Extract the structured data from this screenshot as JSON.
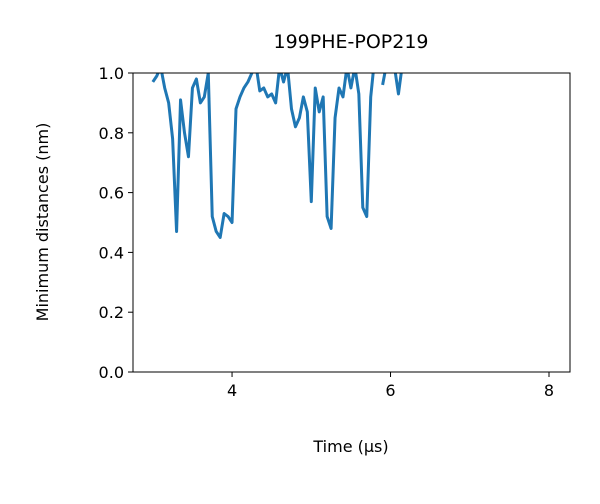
{
  "chart_data": {
    "type": "line",
    "title": "199PHE-POP219",
    "x_label": "Time (μs)",
    "y_label": "Minimum distances (nm)",
    "color": "#1f77b4",
    "x": [
      3.0,
      3.05,
      3.1,
      3.15,
      3.2,
      3.25,
      3.3,
      3.35,
      3.4,
      3.45,
      3.5,
      3.55,
      3.6,
      3.65,
      3.7,
      3.75,
      3.8,
      3.85,
      3.9,
      3.95,
      4.0,
      4.05,
      4.1,
      4.15,
      4.2,
      4.25,
      4.3,
      4.35,
      4.4,
      4.45,
      4.5,
      4.55,
      4.6,
      4.65,
      4.7,
      4.75,
      4.8,
      4.85,
      4.9,
      4.95,
      5.0,
      5.05,
      5.1,
      5.15,
      5.2,
      5.25,
      5.3,
      5.35,
      5.4,
      5.45,
      5.5,
      5.55,
      5.6,
      5.65,
      5.7,
      5.75,
      5.8,
      5.85,
      5.9,
      5.95,
      6.0,
      6.05,
      6.1,
      6.15,
      6.2,
      6.22,
      6.25
    ],
    "values": [
      0.97,
      0.99,
      1.02,
      0.95,
      0.9,
      0.78,
      0.47,
      0.91,
      0.8,
      0.72,
      0.95,
      0.98,
      0.9,
      0.92,
      1.0,
      0.52,
      0.47,
      0.45,
      0.53,
      0.52,
      0.5,
      0.88,
      0.92,
      0.95,
      0.97,
      1.0,
      1.03,
      0.94,
      0.95,
      0.92,
      0.93,
      0.9,
      1.02,
      0.97,
      1.02,
      0.88,
      0.82,
      0.85,
      0.92,
      0.87,
      0.57,
      0.95,
      0.87,
      0.92,
      0.52,
      0.48,
      0.85,
      0.95,
      0.92,
      1.02,
      0.95,
      1.02,
      0.93,
      0.55,
      0.52,
      0.92,
      1.05,
      null,
      0.96,
      1.03,
      null,
      1.02,
      0.93,
      1.03,
      null,
      1.0,
      1.02
    ],
    "xlim": [
      2.75,
      8.265
    ],
    "xticks": [
      4,
      6,
      8
    ],
    "ylim": [
      0,
      1
    ],
    "yticks": [
      {
        "value": 0,
        "label": "0.0"
      },
      {
        "value": 0.2,
        "label": "0.2"
      },
      {
        "value": 0.4,
        "label": "0.4"
      },
      {
        "value": 0.6,
        "label": "0.6"
      },
      {
        "value": 0.8,
        "label": "0.8"
      },
      {
        "value": 1,
        "label": "1.0"
      }
    ]
  }
}
